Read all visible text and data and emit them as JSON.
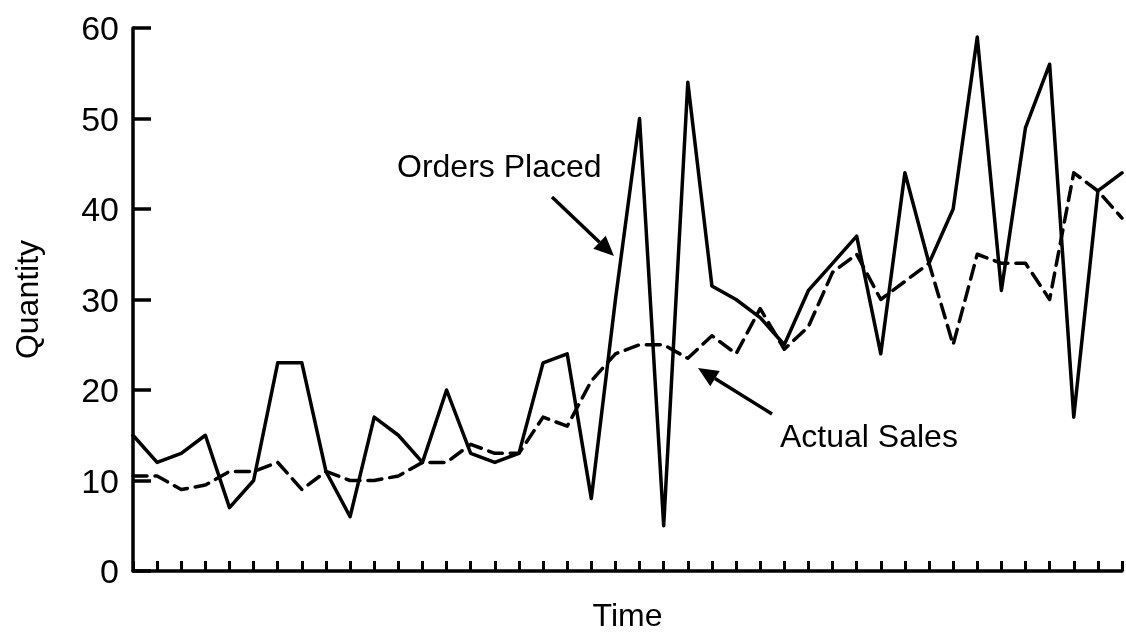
{
  "chart_data": {
    "type": "line",
    "xlabel": "Time",
    "ylabel": "Quantity",
    "categories": [
      null,
      null,
      null,
      null,
      null,
      null,
      null,
      null,
      null,
      null,
      null,
      null,
      null,
      null,
      null,
      null,
      null,
      null,
      null,
      null,
      null,
      null,
      null,
      null,
      null,
      null,
      null,
      null,
      null,
      null,
      null,
      null,
      null,
      null,
      null,
      null,
      null,
      null,
      null,
      null,
      null,
      null
    ],
    "series": [
      {
        "color": "#000000",
        "line_style": "solid",
        "values": [
          15,
          12,
          13,
          15,
          7,
          10,
          23,
          23,
          11,
          6,
          17,
          15,
          12,
          20,
          13,
          12,
          13,
          23,
          24,
          8,
          30,
          50,
          5,
          54,
          31.5,
          30,
          28,
          25,
          31,
          34,
          37,
          24,
          44,
          34,
          40,
          59,
          31,
          49,
          56,
          17,
          42,
          44
        ]
      },
      {
        "color": "#000000",
        "line_style": "dashed",
        "values": [
          10.5,
          10.5,
          9,
          9.5,
          11,
          11,
          12,
          9,
          11,
          10,
          10,
          10.5,
          12,
          12,
          14,
          13,
          13,
          17,
          16,
          21,
          24,
          25,
          25,
          23.5,
          26,
          24,
          29,
          24.5,
          27,
          33,
          35,
          30,
          32,
          34,
          25,
          35,
          34,
          34,
          30,
          44,
          42,
          39
        ]
      }
    ],
    "ylim": [
      0,
      60
    ],
    "yticks": [
      0,
      10,
      20,
      30,
      40,
      50,
      60
    ],
    "grid": false,
    "marker": "none",
    "annotations": [
      "Orders Placed",
      "Actual Sales"
    ]
  }
}
